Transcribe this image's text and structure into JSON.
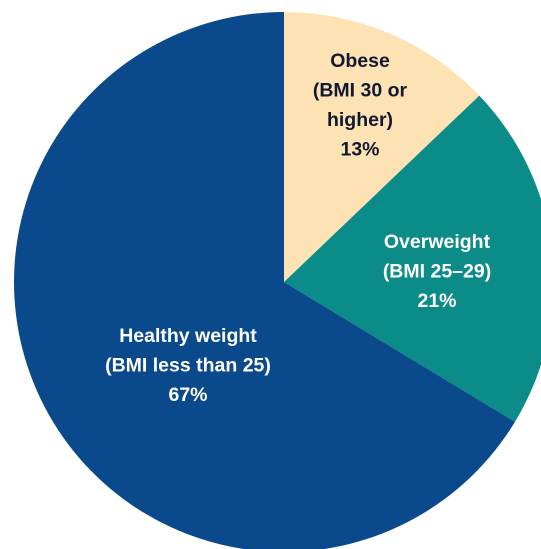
{
  "chart_data": {
    "type": "pie",
    "categories": [
      [
        "Obese",
        "(BMI 30 or",
        "higher)"
      ],
      [
        "Overweight",
        "(BMI 25–29)"
      ],
      [
        "Healthy weight",
        "(BMI less than 25)"
      ]
    ],
    "values": [
      13,
      21,
      67
    ],
    "value_labels": [
      "13%",
      "21%",
      "67%"
    ],
    "colors": [
      "#fde3b3",
      "#0b8c88",
      "#0a4a8c"
    ],
    "label_colors": [
      "#111833",
      "#ffffff",
      "#ffffff"
    ]
  }
}
